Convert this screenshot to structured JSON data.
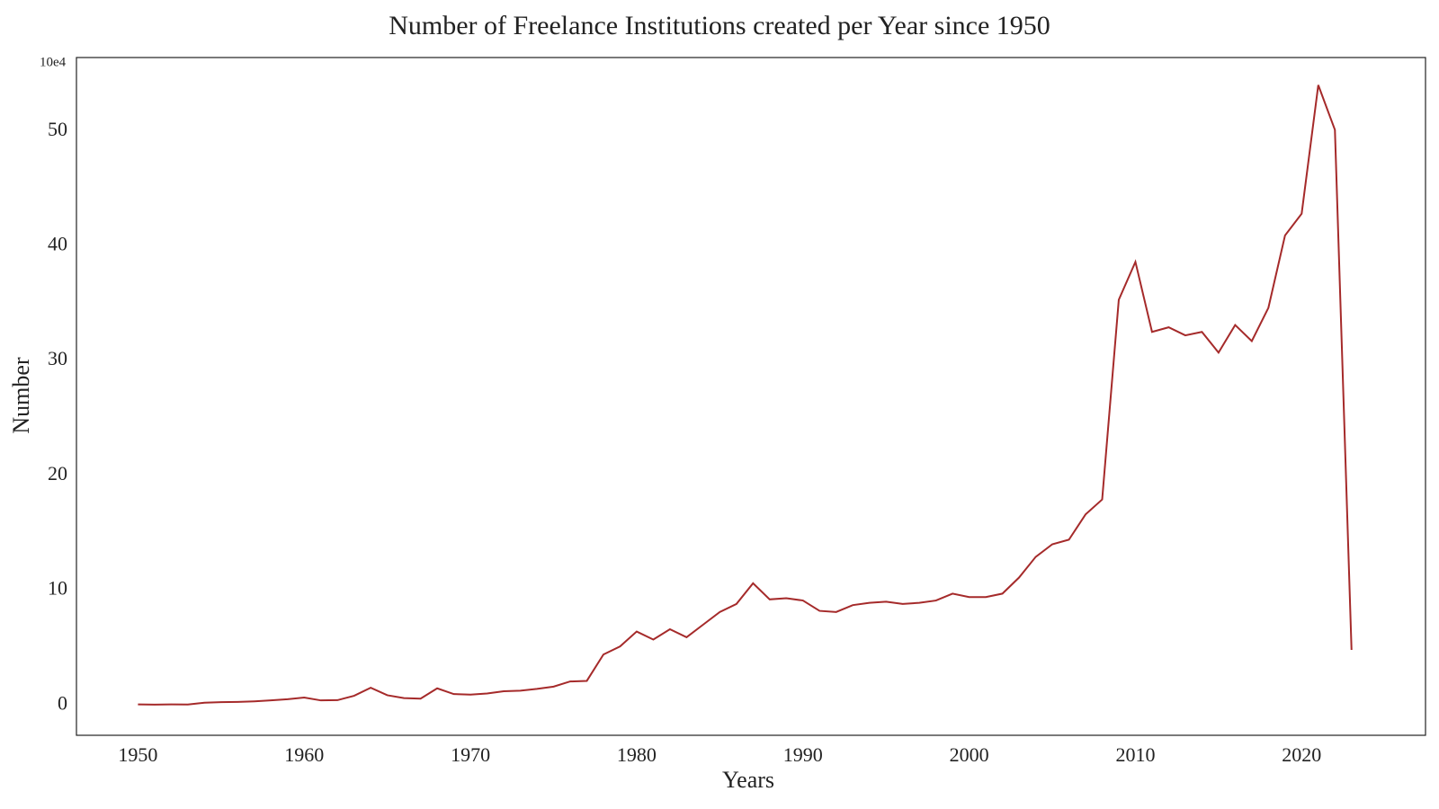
{
  "chart_data": {
    "type": "line",
    "title": "Number of Freelance Institutions created per Year since 1950",
    "x_label": "Years",
    "y_label": "Number",
    "y_offset_label": "10e4",
    "x": [
      1950,
      1951,
      1952,
      1953,
      1954,
      1955,
      1956,
      1957,
      1958,
      1959,
      1960,
      1961,
      1962,
      1963,
      1964,
      1965,
      1966,
      1967,
      1968,
      1969,
      1970,
      1971,
      1972,
      1973,
      1974,
      1975,
      1976,
      1977,
      1978,
      1979,
      1980,
      1981,
      1982,
      1983,
      1984,
      1985,
      1986,
      1987,
      1988,
      1989,
      1990,
      1991,
      1992,
      1993,
      1994,
      1995,
      1996,
      1997,
      1998,
      1999,
      2000,
      2001,
      2002,
      2003,
      2004,
      2005,
      2006,
      2007,
      2008,
      2009,
      2010,
      2011,
      2012,
      2013,
      2014,
      2015,
      2016,
      2017,
      2018,
      2019,
      2020,
      2021,
      2022,
      2023
    ],
    "series": [
      {
        "name": "Number",
        "color": "#a52a2a",
        "values": [
          0.05,
          0.03,
          0.05,
          0.04,
          0.2,
          0.25,
          0.27,
          0.32,
          0.4,
          0.5,
          0.65,
          0.4,
          0.42,
          0.8,
          1.5,
          0.85,
          0.6,
          0.55,
          1.45,
          0.95,
          0.9,
          1.0,
          1.2,
          1.25,
          1.4,
          1.6,
          2.05,
          2.1,
          4.4,
          5.1,
          6.4,
          5.7,
          6.6,
          5.9,
          7.0,
          8.1,
          8.8,
          10.6,
          9.2,
          9.3,
          9.1,
          8.2,
          8.1,
          8.7,
          8.9,
          9.0,
          8.8,
          8.9,
          9.1,
          9.7,
          9.4,
          9.4,
          9.7,
          11.1,
          12.9,
          14.0,
          14.4,
          16.6,
          17.9,
          35.3,
          38.6,
          32.5,
          32.9,
          32.2,
          32.5,
          30.7,
          33.1,
          31.7,
          34.6,
          40.9,
          42.8,
          54.0,
          50.1,
          4.8
        ]
      }
    ],
    "xlim": [
      1946.3,
      2027.45
    ],
    "ylim": [
      -2.64,
      56.4
    ],
    "xticks": [
      1950,
      1960,
      1970,
      1980,
      1990,
      2000,
      2010,
      2020
    ],
    "yticks": [
      0,
      10,
      20,
      30,
      40,
      50
    ],
    "grid": false
  }
}
